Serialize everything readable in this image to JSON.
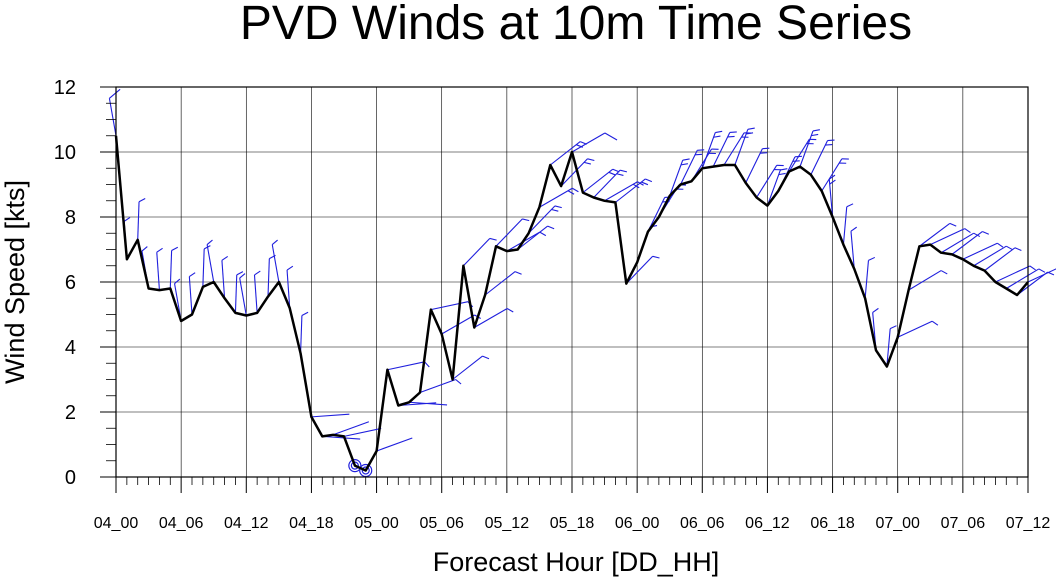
{
  "chart_data": {
    "type": "line",
    "title": "PVD Winds at 10m Time Series",
    "xlabel": "Forecast Hour [DD_HH]",
    "ylabel": "Wind Speed [kts]",
    "ylim": [
      0,
      12
    ],
    "yticks": [
      "0",
      "2",
      "4",
      "6",
      "8",
      "10",
      "12"
    ],
    "xlim_hours": [
      0,
      84
    ],
    "xticks": [
      {
        "hour": 0,
        "label": "04_00"
      },
      {
        "hour": 6,
        "label": "04_06"
      },
      {
        "hour": 12,
        "label": "04_12"
      },
      {
        "hour": 18,
        "label": "04_18"
      },
      {
        "hour": 24,
        "label": "05_00"
      },
      {
        "hour": 30,
        "label": "05_06"
      },
      {
        "hour": 36,
        "label": "05_12"
      },
      {
        "hour": 42,
        "label": "05_18"
      },
      {
        "hour": 48,
        "label": "06_00"
      },
      {
        "hour": 54,
        "label": "06_06"
      },
      {
        "hour": 60,
        "label": "06_12"
      },
      {
        "hour": 66,
        "label": "06_18"
      },
      {
        "hour": 72,
        "label": "07_00"
      },
      {
        "hour": 78,
        "label": "07_06"
      },
      {
        "hour": 84,
        "label": "07_12"
      }
    ],
    "grid": true,
    "series": [
      {
        "color": "#000000",
        "x": [
          0,
          1,
          2,
          3,
          4,
          5,
          6,
          7,
          8,
          9,
          10,
          11,
          12,
          13,
          14,
          15,
          16,
          17,
          18,
          19,
          20,
          21,
          22,
          23,
          24,
          25,
          26,
          27,
          28,
          29,
          30,
          31,
          32,
          33,
          34,
          35,
          36,
          37,
          38,
          39,
          40,
          41,
          42,
          43,
          44,
          45,
          46,
          47,
          48,
          49,
          50,
          51,
          52,
          53,
          54,
          55,
          56,
          57,
          58,
          59,
          60,
          61,
          62,
          63,
          64,
          65,
          66,
          67,
          68,
          69,
          70,
          71,
          72,
          73,
          74,
          75,
          76,
          77,
          78,
          79,
          80,
          81,
          82,
          83,
          84
        ],
        "y": [
          10.5,
          6.7,
          7.3,
          5.8,
          5.75,
          5.8,
          4.8,
          5.0,
          5.85,
          6.0,
          5.5,
          5.05,
          4.97,
          5.05,
          5.55,
          6.0,
          5.2,
          3.8,
          1.85,
          1.25,
          1.3,
          1.25,
          0.35,
          0.2,
          0.8,
          3.3,
          2.2,
          2.3,
          2.6,
          5.15,
          4.4,
          3.0,
          6.5,
          4.6,
          5.6,
          7.1,
          6.95,
          7.0,
          7.5,
          8.3,
          9.6,
          8.95,
          10.0,
          8.75,
          8.6,
          8.5,
          8.45,
          5.95,
          6.6,
          7.55,
          8.0,
          8.65,
          9.0,
          9.1,
          9.5,
          9.55,
          9.6,
          9.6,
          9.05,
          8.6,
          8.35,
          8.8,
          9.4,
          9.55,
          9.3,
          8.8,
          8.0,
          7.15,
          6.4,
          5.5,
          3.9,
          3.4,
          4.3,
          5.75,
          7.1,
          7.15,
          6.9,
          6.85,
          6.7,
          6.5,
          6.35,
          6.0,
          5.8,
          5.6,
          6.0
        ]
      }
    ],
    "barbs": {
      "color": "#1f1fdd",
      "calm_hours": [
        22,
        23
      ]
    }
  }
}
